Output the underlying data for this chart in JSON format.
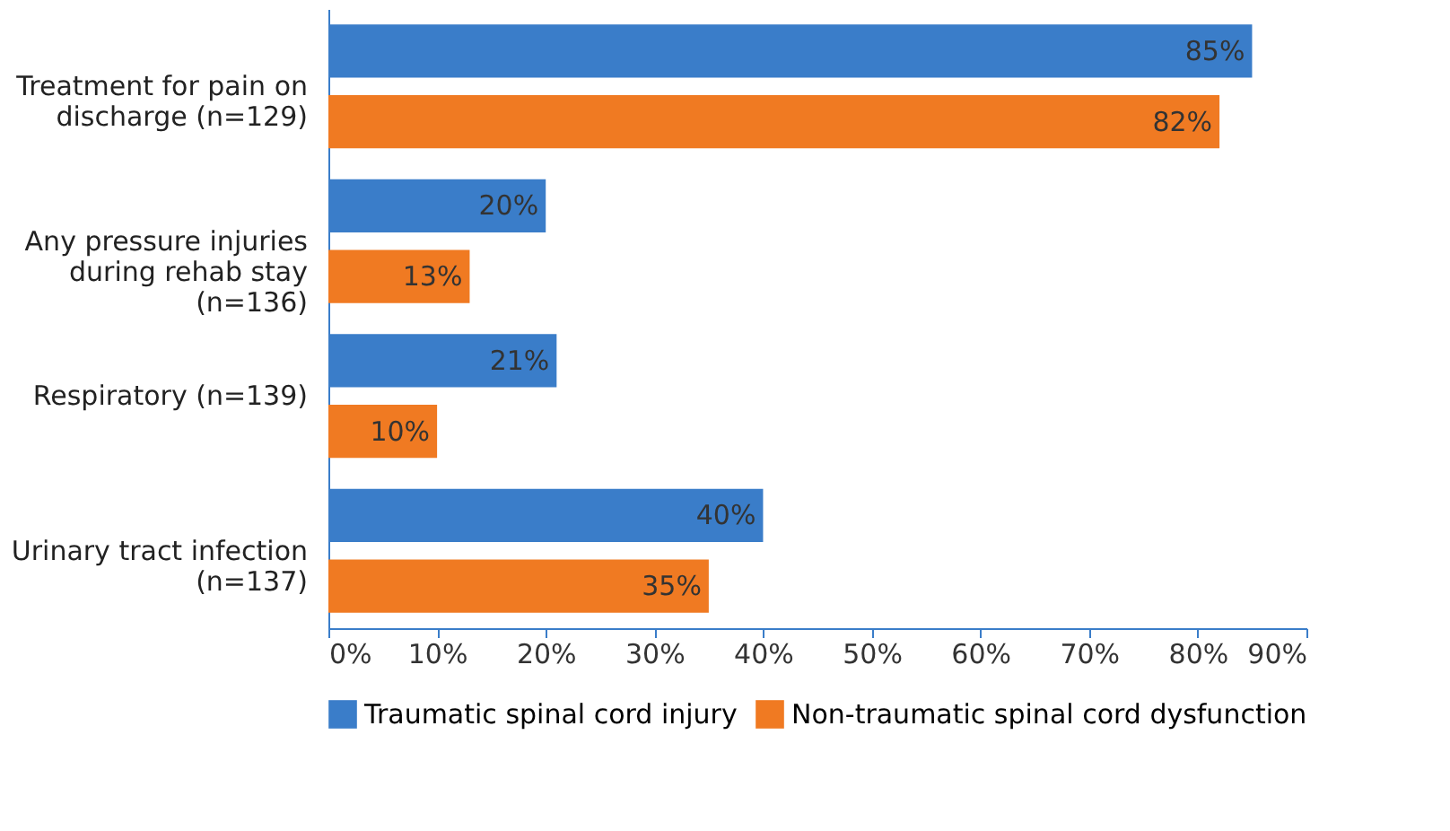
{
  "chart_data": {
    "type": "bar",
    "orientation": "horizontal",
    "categories": [
      "Treatment for pain on\ndischarge (n=129)",
      "Any pressure injuries\nduring rehab stay\n(n=136)",
      "Respiratory (n=139)",
      "Urinary tract infection\n(n=137)"
    ],
    "series": [
      {
        "name": "Traumatic spinal cord injury",
        "color": "#3a7dc9",
        "values": [
          85,
          20,
          21,
          40
        ],
        "value_labels": [
          "85%",
          "20%",
          "21%",
          "40%"
        ]
      },
      {
        "name": "Non-traumatic spinal cord dysfunction",
        "color": "#f07a22",
        "values": [
          82,
          13,
          10,
          35
        ],
        "value_labels": [
          "82%",
          "13%",
          "10%",
          "35%"
        ]
      }
    ],
    "xlim": [
      0,
      90
    ],
    "xticks": [
      {
        "value": 0,
        "label": "0%"
      },
      {
        "value": 10,
        "label": "10%"
      },
      {
        "value": 20,
        "label": "20%"
      },
      {
        "value": 30,
        "label": "30%"
      },
      {
        "value": 40,
        "label": "40%"
      },
      {
        "value": 50,
        "label": "50%"
      },
      {
        "value": 60,
        "label": "60%"
      },
      {
        "value": 70,
        "label": "70%"
      },
      {
        "value": 80,
        "label": "80%"
      },
      {
        "value": 90,
        "label": "90%"
      }
    ],
    "grid": false,
    "legend": "bottom"
  }
}
